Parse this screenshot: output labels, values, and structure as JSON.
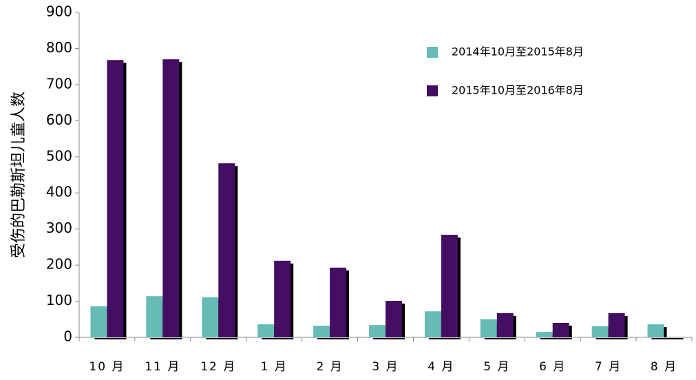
{
  "chart_data": {
    "type": "bar",
    "y_label": "受伤的巴勒斯坦儿童人数",
    "categories": [
      "10 月",
      "11 月",
      "12 月",
      "1 月",
      "2 月",
      "3 月",
      "4 月",
      "5 月",
      "6 月",
      "7 月",
      "8 月"
    ],
    "series": [
      {
        "name": "2014年10月至2015年8月",
        "color": "#66bbb4",
        "values": [
          86,
          114,
          111,
          36,
          32,
          34,
          72,
          50,
          15,
          31,
          36
        ]
      },
      {
        "name": "2015年10月至2016年8月",
        "color": "#440e62",
        "values": [
          768,
          770,
          482,
          212,
          193,
          101,
          284,
          67,
          40,
          67,
          null
        ]
      }
    ],
    "ylim": [
      0,
      900
    ],
    "yticks": [
      0,
      100,
      200,
      300,
      400,
      500,
      600,
      700,
      800,
      900
    ],
    "legend": "upper right"
  }
}
